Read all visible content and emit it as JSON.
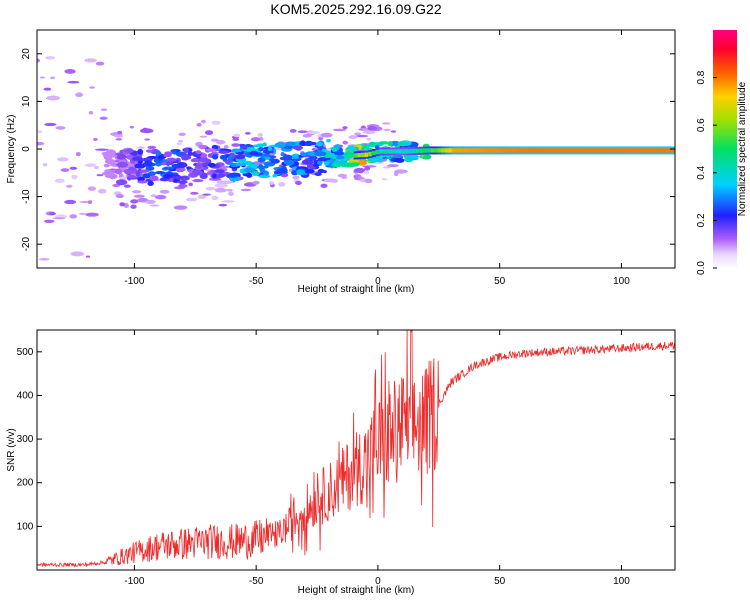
{
  "title": "KOM5.2025.292.16.09.G22",
  "colors": {
    "line": "#ee2a2a",
    "axis": "#000000",
    "background": "#ffffff"
  },
  "chart_data": [
    {
      "type": "heatmap",
      "name": "spectrogram",
      "xlabel": "Height of straight line (km)",
      "ylabel": "Frequency (Hz)",
      "xlim": [
        -140,
        122
      ],
      "ylim": [
        -25,
        25
      ],
      "xticks": [
        -100,
        -50,
        0,
        50,
        100
      ],
      "yticks": [
        -20,
        -10,
        0,
        10,
        20
      ],
      "colorbar": {
        "label": "Normalized spectral amplitude",
        "range": [
          0,
          1
        ],
        "ticks": [
          "0.0",
          "0.2",
          "0.4",
          "0.6",
          "0.8"
        ],
        "tick_values": [
          0.0,
          0.2,
          0.4,
          0.6,
          0.8
        ]
      },
      "ridge": [
        {
          "x": -110,
          "f": -3.5,
          "amp": 0.1
        },
        {
          "x": -90,
          "f": -4.0,
          "amp": 0.28
        },
        {
          "x": -70,
          "f": -3.0,
          "amp": 0.2
        },
        {
          "x": -50,
          "f": -2.5,
          "amp": 0.38
        },
        {
          "x": -30,
          "f": -2.0,
          "amp": 0.3
        },
        {
          "x": -15,
          "f": -1.5,
          "amp": 0.45
        },
        {
          "x": -5,
          "f": -1.2,
          "amp": 0.75
        },
        {
          "x": 0,
          "f": -0.5,
          "amp": 0.48
        },
        {
          "x": 10,
          "f": -0.5,
          "amp": 0.42
        },
        {
          "x": 20,
          "f": -0.3,
          "amp": 0.55
        },
        {
          "x": 30,
          "f": -0.3,
          "amp": 0.95
        },
        {
          "x": 60,
          "f": -0.3,
          "amp": 1.0
        },
        {
          "x": 122,
          "f": -0.3,
          "amp": 1.0
        }
      ]
    },
    {
      "type": "line",
      "name": "snr",
      "xlabel": "Height of straight line (km)",
      "ylabel": "SNR (v/v)",
      "xlim": [
        -140,
        122
      ],
      "ylim": [
        0,
        550
      ],
      "xticks": [
        -100,
        -50,
        0,
        50,
        100
      ],
      "yticks": [
        100,
        200,
        300,
        400,
        500
      ],
      "series": [
        {
          "name": "SNR",
          "x": [
            -140,
            -120,
            -112,
            -100,
            -90,
            -80,
            -70,
            -60,
            -50,
            -40,
            -35,
            -30,
            -25,
            -20,
            -15,
            -10,
            -5,
            0,
            5,
            10,
            15,
            20,
            25,
            30,
            40,
            50,
            60,
            70,
            80,
            90,
            100,
            110,
            122
          ],
          "y": [
            12,
            12,
            18,
            40,
            55,
            60,
            65,
            65,
            70,
            85,
            110,
            140,
            160,
            180,
            200,
            230,
            250,
            290,
            310,
            330,
            330,
            340,
            380,
            430,
            470,
            488,
            497,
            500,
            502,
            505,
            508,
            512,
            515
          ]
        }
      ]
    }
  ]
}
